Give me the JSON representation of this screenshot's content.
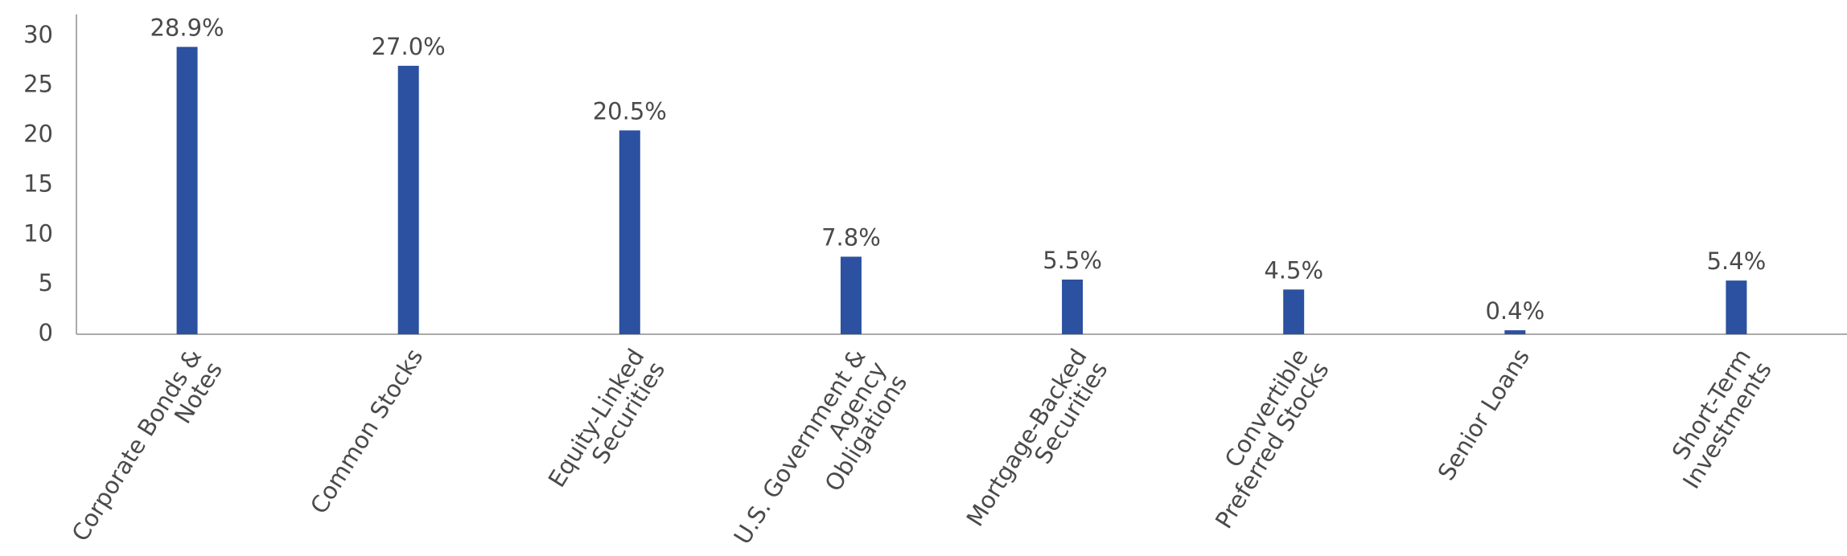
{
  "chart_data": {
    "type": "bar",
    "categories": [
      "Corporate Bonds & Notes",
      "Common Stocks",
      "Equity-Linked Securities",
      "U.S. Government & Agency Obligations",
      "Mortgage-Backed Securities",
      "Convertible Preferred Stocks",
      "Senior Loans",
      "Short-Term Investments"
    ],
    "values": [
      28.9,
      27.0,
      20.5,
      7.8,
      5.5,
      4.5,
      0.4,
      5.4
    ],
    "value_labels": [
      "28.9%",
      "27.0%",
      "20.5%",
      "7.8%",
      "5.5%",
      "4.5%",
      "0.4%",
      "5.4%"
    ],
    "color": "#2b51a0",
    "ylim": [
      0,
      32
    ],
    "yticks": [
      0,
      5,
      10,
      15,
      20,
      25,
      30
    ],
    "grid": false
  }
}
